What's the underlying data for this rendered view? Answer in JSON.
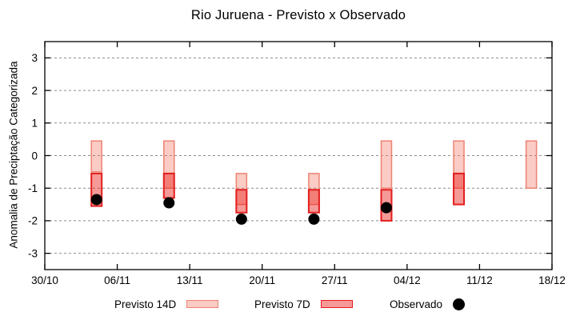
{
  "title": "Rio Juruena - Previsto x Observado",
  "legend": {
    "previsto_14d": "Previsto 14D",
    "previsto_7d": "Previsto 7D",
    "observado": "Observado"
  },
  "colors": {
    "previsto_14d_fill": "rgba(240,110,90,0.35)",
    "previsto_14d_border": "#ee8372",
    "previsto_7d_fill": "rgba(235,30,25,0.45)",
    "previsto_7d_border": "#e31e1e",
    "observado": "#000000",
    "grid": "#8c8c8c",
    "axis": "#000000",
    "background": "#ffffff"
  },
  "chart_data": {
    "type": "bar",
    "subtype": "range-bars-with-scatter",
    "title": "Rio Juruena - Previsto x Observado",
    "xlabel": "",
    "ylabel": "Anomalia de Preciptação Categorizada",
    "ylim": [
      -3.5,
      3.5
    ],
    "grid": true,
    "legend_position": "bottom",
    "x_axis": {
      "tick_labels": [
        "30/10",
        "06/11",
        "13/11",
        "20/11",
        "27/11",
        "04/12",
        "11/12",
        "18/12"
      ],
      "tick_days": [
        0,
        7,
        14,
        21,
        28,
        35,
        42,
        49
      ],
      "span_days": [
        0,
        49
      ]
    },
    "y_axis": {
      "tick_values": [
        3,
        2,
        1,
        0,
        -1,
        -2,
        -3
      ],
      "tick_labels": [
        "3",
        "2",
        "1",
        "0",
        "-1",
        "-2",
        "-3"
      ]
    },
    "series_names": [
      "Previsto 14D",
      "Previsto 7D",
      "Observado"
    ],
    "groups": [
      {
        "date": "04/11",
        "day": 5,
        "previsto_14d": [
          -0.5,
          0.45
        ],
        "previsto_7d": [
          -1.55,
          -0.55
        ],
        "observado": -1.35
      },
      {
        "date": "11/11",
        "day": 12,
        "previsto_14d": [
          -1.0,
          0.45
        ],
        "previsto_7d": [
          -1.3,
          -0.55
        ],
        "observado": -1.45
      },
      {
        "date": "18/11",
        "day": 19,
        "previsto_14d": [
          -1.5,
          -0.55
        ],
        "previsto_7d": [
          -1.75,
          -1.05
        ],
        "observado": -1.95
      },
      {
        "date": "25/11",
        "day": 26,
        "previsto_14d": [
          -1.5,
          -0.55
        ],
        "previsto_7d": [
          -1.75,
          -1.05
        ],
        "observado": -1.95
      },
      {
        "date": "02/12",
        "day": 33,
        "previsto_14d": [
          -1.0,
          0.45
        ],
        "previsto_7d": [
          -2.0,
          -1.05
        ],
        "observado": -1.6
      },
      {
        "date": "09/12",
        "day": 40,
        "previsto_14d": [
          -1.0,
          0.45
        ],
        "previsto_7d": [
          -1.5,
          -0.55
        ],
        "observado": null
      },
      {
        "date": "16/12",
        "day": 47,
        "previsto_14d": [
          -1.0,
          0.45
        ],
        "previsto_7d": null,
        "observado": null
      }
    ]
  }
}
